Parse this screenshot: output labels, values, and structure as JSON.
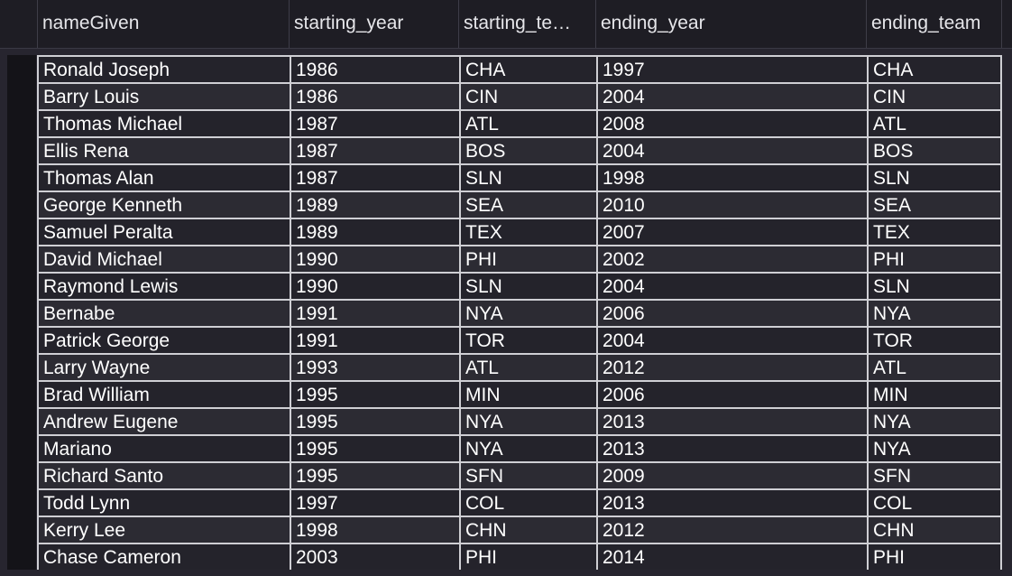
{
  "columns": [
    "nameGiven",
    "starting_year",
    "starting_te…",
    "ending_year",
    "ending_team"
  ],
  "rows": [
    [
      "Ronald Joseph",
      "1986",
      "CHA",
      "1997",
      "CHA"
    ],
    [
      "Barry Louis",
      "1986",
      "CIN",
      "2004",
      "CIN"
    ],
    [
      "Thomas Michael",
      "1987",
      "ATL",
      "2008",
      "ATL"
    ],
    [
      "Ellis Rena",
      "1987",
      "BOS",
      "2004",
      "BOS"
    ],
    [
      "Thomas Alan",
      "1987",
      "SLN",
      "1998",
      "SLN"
    ],
    [
      "George Kenneth",
      "1989",
      "SEA",
      "2010",
      "SEA"
    ],
    [
      "Samuel Peralta",
      "1989",
      "TEX",
      "2007",
      "TEX"
    ],
    [
      "David Michael",
      "1990",
      "PHI",
      "2002",
      "PHI"
    ],
    [
      "Raymond Lewis",
      "1990",
      "SLN",
      "2004",
      "SLN"
    ],
    [
      "Bernabe",
      "1991",
      "NYA",
      "2006",
      "NYA"
    ],
    [
      "Patrick George",
      "1991",
      "TOR",
      "2004",
      "TOR"
    ],
    [
      "Larry Wayne",
      "1993",
      "ATL",
      "2012",
      "ATL"
    ],
    [
      "Brad William",
      "1995",
      "MIN",
      "2006",
      "MIN"
    ],
    [
      "Andrew Eugene",
      "1995",
      "NYA",
      "2013",
      "NYA"
    ],
    [
      "Mariano",
      "1995",
      "NYA",
      "2013",
      "NYA"
    ],
    [
      "Richard Santo",
      "1995",
      "SFN",
      "2009",
      "SFN"
    ],
    [
      "Todd Lynn",
      "1997",
      "COL",
      "2013",
      "COL"
    ],
    [
      "Kerry Lee",
      "1998",
      "CHN",
      "2012",
      "CHN"
    ],
    [
      "Chase Cameron",
      "2003",
      "PHI",
      "2014",
      "PHI"
    ]
  ]
}
